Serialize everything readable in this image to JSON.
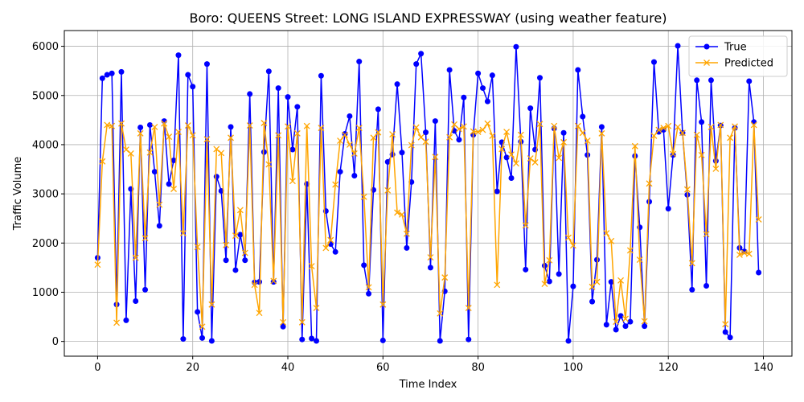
{
  "chart_data": {
    "type": "line",
    "title": "Boro: QUEENS Street: LONG ISLAND EXPRESSWAY (using weather feature)",
    "xlabel": "Time Index",
    "ylabel": "Traffic Volume",
    "xlim": [
      -7,
      146
    ],
    "ylim": [
      -300,
      6320
    ],
    "xticks": [
      0,
      20,
      40,
      60,
      80,
      100,
      120,
      140
    ],
    "yticks": [
      0,
      1000,
      2000,
      3000,
      4000,
      5000,
      6000
    ],
    "grid": true,
    "legend_position": "top-right",
    "series": [
      {
        "name": "True",
        "color": "#0000ff",
        "marker": "circle",
        "values": [
          1700,
          5350,
          5420,
          5450,
          750,
          5480,
          430,
          3100,
          820,
          4350,
          1050,
          4400,
          3450,
          2350,
          4480,
          3200,
          3680,
          5820,
          50,
          5420,
          5180,
          600,
          70,
          5640,
          10,
          3350,
          3060,
          1650,
          4360,
          1450,
          2170,
          1650,
          5030,
          1200,
          1210,
          3850,
          5490,
          1210,
          5150,
          300,
          4970,
          3900,
          4770,
          40,
          3200,
          60,
          10,
          5400,
          2650,
          1980,
          1820,
          3450,
          4220,
          4580,
          3370,
          5690,
          1550,
          970,
          3080,
          4720,
          20,
          3650,
          3800,
          5230,
          3840,
          1900,
          3240,
          5640,
          5850,
          4250,
          1500,
          4480,
          10,
          1020,
          5520,
          4280,
          4100,
          4960,
          40,
          4200,
          5450,
          5150,
          4880,
          5410,
          3050,
          4050,
          3740,
          3320,
          5990,
          4060,
          1460,
          4740,
          3900,
          5360,
          1540,
          1220,
          4330,
          1370,
          4240,
          10,
          1120,
          5520,
          4570,
          3790,
          810,
          1660,
          4360,
          340,
          1210,
          240,
          520,
          310,
          400,
          3770,
          2320,
          310,
          2840,
          5680,
          4260,
          4300,
          2700,
          3790,
          6010,
          4240,
          2980,
          1050,
          5310,
          4460,
          1130,
          5310,
          3670,
          4390,
          190,
          80,
          4340,
          1900,
          1830,
          5290,
          4460,
          1400
        ]
      },
      {
        "name": "Predicted",
        "color": "#ffa500",
        "marker": "x",
        "values": [
          1560,
          3660,
          4400,
          4380,
          380,
          4430,
          3900,
          3820,
          1700,
          4230,
          2100,
          3840,
          4360,
          2780,
          4430,
          4160,
          3100,
          4260,
          2200,
          4390,
          4190,
          1920,
          300,
          4110,
          750,
          3910,
          3830,
          1960,
          4140,
          2150,
          2670,
          1800,
          4390,
          1150,
          580,
          4440,
          3600,
          1230,
          4190,
          390,
          4370,
          3260,
          4230,
          390,
          4380,
          1530,
          680,
          4340,
          1900,
          2060,
          3190,
          4080,
          4200,
          4000,
          3820,
          4340,
          2940,
          1100,
          4140,
          4250,
          750,
          3070,
          4210,
          2620,
          2580,
          2190,
          3990,
          4350,
          4150,
          4060,
          1710,
          3750,
          570,
          1300,
          4150,
          4410,
          4320,
          4370,
          680,
          4270,
          4260,
          4300,
          4430,
          4180,
          1150,
          3910,
          4260,
          3800,
          3620,
          4200,
          2360,
          3720,
          3640,
          4420,
          1170,
          1650,
          4380,
          3730,
          4050,
          2110,
          1950,
          4380,
          4240,
          4080,
          1110,
          1210,
          4230,
          2200,
          2040,
          400,
          1240,
          460,
          1850,
          3970,
          1660,
          410,
          3210,
          4180,
          4300,
          4340,
          4380,
          3810,
          4360,
          4240,
          3090,
          1590,
          4200,
          3790,
          2180,
          4360,
          3510,
          4400,
          350,
          4140,
          4370,
          1760,
          1800,
          1780,
          4400,
          2480
        ]
      }
    ]
  }
}
